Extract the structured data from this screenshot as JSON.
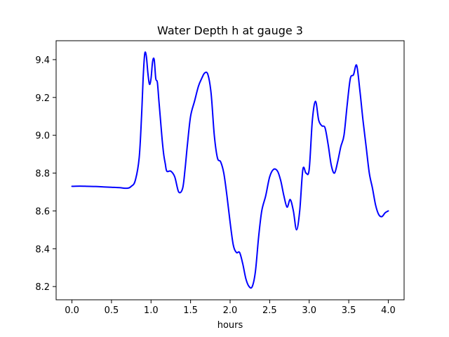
{
  "chart_data": {
    "type": "line",
    "title": "Water Depth h at gauge 3",
    "xlabel": "hours",
    "ylabel": "",
    "xlim": [
      -0.2,
      4.2
    ],
    "ylim": [
      8.13,
      9.5
    ],
    "xticks": [
      0.0,
      0.5,
      1.0,
      1.5,
      2.0,
      2.5,
      3.0,
      3.5,
      4.0
    ],
    "xtick_labels": [
      "0.0",
      "0.5",
      "1.0",
      "1.5",
      "2.0",
      "2.5",
      "3.0",
      "3.5",
      "4.0"
    ],
    "yticks": [
      8.2,
      8.4,
      8.6,
      8.8,
      9.0,
      9.2,
      9.4
    ],
    "ytick_labels": [
      "8.2",
      "8.4",
      "8.6",
      "8.8",
      "9.0",
      "9.2",
      "9.4"
    ],
    "grid": false,
    "series": [
      {
        "color": "#0000ff",
        "x": [
          0.0,
          0.1,
          0.2,
          0.3,
          0.4,
          0.5,
          0.6,
          0.7,
          0.75,
          0.8,
          0.85,
          0.88,
          0.9,
          0.92,
          0.94,
          0.96,
          0.98,
          1.0,
          1.02,
          1.04,
          1.06,
          1.08,
          1.1,
          1.12,
          1.14,
          1.16,
          1.18,
          1.2,
          1.25,
          1.3,
          1.35,
          1.4,
          1.43,
          1.46,
          1.5,
          1.55,
          1.6,
          1.64,
          1.68,
          1.72,
          1.76,
          1.8,
          1.84,
          1.88,
          1.92,
          1.96,
          2.0,
          2.04,
          2.08,
          2.12,
          2.16,
          2.2,
          2.24,
          2.28,
          2.32,
          2.36,
          2.4,
          2.45,
          2.5,
          2.55,
          2.6,
          2.64,
          2.68,
          2.72,
          2.76,
          2.8,
          2.84,
          2.88,
          2.92,
          2.96,
          3.0,
          3.04,
          3.08,
          3.12,
          3.16,
          3.2,
          3.24,
          3.28,
          3.32,
          3.36,
          3.4,
          3.44,
          3.48,
          3.52,
          3.56,
          3.6,
          3.64,
          3.68,
          3.72,
          3.76,
          3.8,
          3.84,
          3.88,
          3.92,
          3.96,
          4.0
        ],
        "y": [
          8.73,
          8.731,
          8.73,
          8.729,
          8.727,
          8.725,
          8.723,
          8.72,
          8.73,
          8.76,
          8.88,
          9.1,
          9.3,
          9.43,
          9.42,
          9.33,
          9.27,
          9.3,
          9.39,
          9.4,
          9.3,
          9.28,
          9.18,
          9.08,
          8.98,
          8.9,
          8.85,
          8.81,
          8.81,
          8.78,
          8.7,
          8.72,
          8.82,
          8.95,
          9.1,
          9.18,
          9.26,
          9.3,
          9.33,
          9.32,
          9.22,
          9.0,
          8.88,
          8.86,
          8.8,
          8.68,
          8.54,
          8.42,
          8.38,
          8.38,
          8.32,
          8.24,
          8.2,
          8.2,
          8.28,
          8.46,
          8.6,
          8.68,
          8.78,
          8.82,
          8.81,
          8.76,
          8.68,
          8.62,
          8.66,
          8.6,
          8.5,
          8.6,
          8.82,
          8.8,
          8.82,
          9.08,
          9.18,
          9.08,
          9.05,
          9.04,
          8.95,
          8.84,
          8.8,
          8.86,
          8.94,
          9.0,
          9.16,
          9.3,
          9.32,
          9.37,
          9.24,
          9.08,
          8.94,
          8.8,
          8.72,
          8.63,
          8.58,
          8.57,
          8.59,
          8.6
        ]
      }
    ]
  }
}
